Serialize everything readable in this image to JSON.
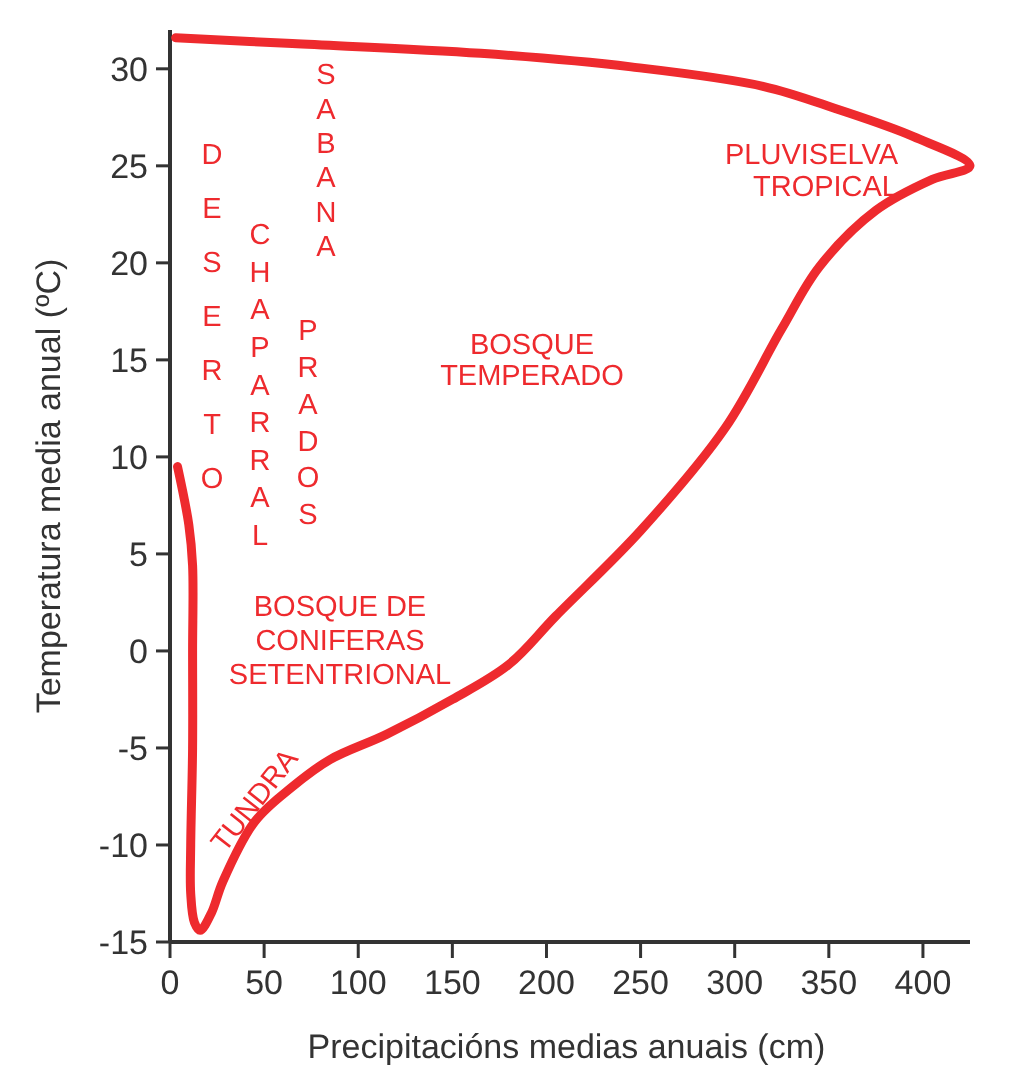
{
  "chart_data": {
    "type": "line",
    "xlabel": "Precipitacións medias anuais (cm)",
    "ylabel": "Temperatura media anual (ºC)",
    "xlim": [
      0,
      425
    ],
    "ylim": [
      -15,
      32
    ],
    "xticks": [
      0,
      50,
      100,
      150,
      200,
      250,
      300,
      350,
      400
    ],
    "yticks": [
      -15,
      -10,
      -5,
      0,
      5,
      10,
      15,
      20,
      25,
      30
    ],
    "grid": false,
    "marker": "none",
    "line_style": "solid",
    "series": [
      {
        "color": "#ee2a2e",
        "x": [
          4,
          10,
          12,
          12,
          12,
          11,
          11,
          13,
          16,
          22,
          28,
          45,
          65,
          85,
          115,
          150,
          180,
          205,
          250,
          295,
          325,
          345,
          375,
          405,
          425,
          395,
          355,
          315,
          245,
          165,
          65,
          3
        ],
        "values": [
          9.5,
          6.5,
          4.4,
          0,
          -5,
          -10,
          -12.5,
          -14,
          -14.4,
          -13.5,
          -11.9,
          -8.8,
          -7,
          -5.6,
          -4.3,
          -2.5,
          -0.7,
          1.8,
          6.2,
          11.5,
          16.6,
          19.8,
          22.7,
          24.3,
          25,
          26.5,
          27.9,
          29.1,
          30.1,
          30.8,
          31.3,
          31.6
        ]
      }
    ],
    "annotations": [
      "DESERTO",
      "CHAPARRAL",
      "SABANA",
      "PRADOS",
      "BOSQUE TEMPERADO",
      "PLUVISELVA TROPICAL",
      "BOSQUE DE CONIFERAS SETENTRIONAL",
      "TUNDRA"
    ]
  }
}
